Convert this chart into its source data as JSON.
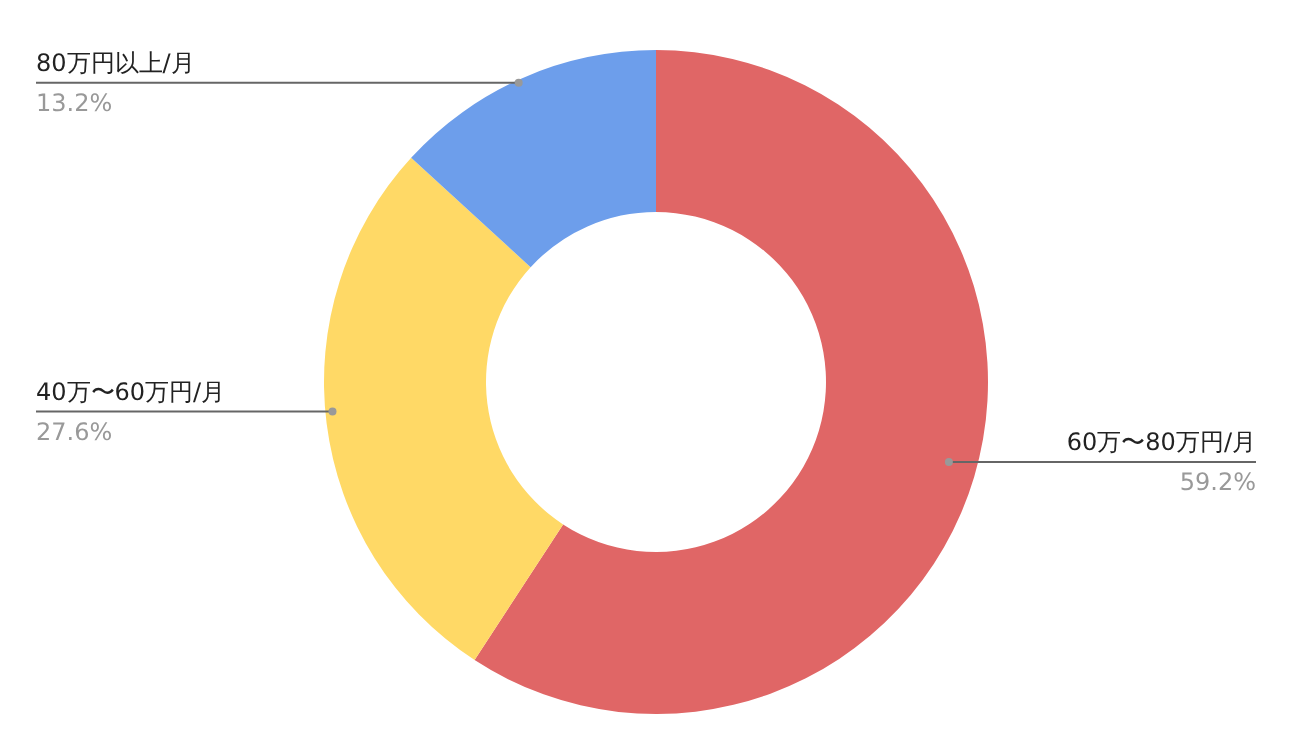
{
  "chart_data": {
    "type": "donut",
    "categories": [
      "60万〜80万円/月",
      "40万〜60万円/月",
      "80万円以上/月"
    ],
    "values": [
      59.2,
      27.6,
      13.2
    ],
    "value_labels": [
      "59.2%",
      "27.6%",
      "13.2%"
    ],
    "colors": [
      "#e06666",
      "#ffd966",
      "#6d9eeb"
    ]
  }
}
